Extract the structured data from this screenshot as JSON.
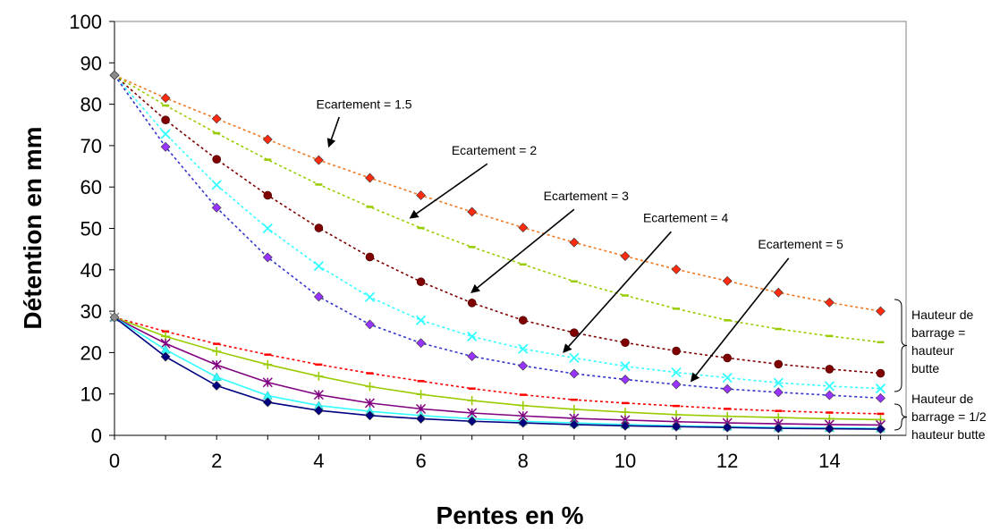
{
  "chart_data": {
    "type": "line",
    "title": "",
    "xlabel": "Pentes en %",
    "ylabel": "Détention en mm",
    "xlim": [
      0,
      15.5
    ],
    "ylim": [
      0,
      100
    ],
    "x_ticks": [
      0,
      2,
      4,
      6,
      8,
      10,
      12,
      14
    ],
    "y_ticks": [
      0,
      10,
      20,
      30,
      40,
      50,
      60,
      70,
      80,
      90,
      100
    ],
    "x_tick_labels": [
      "0",
      "2",
      "4",
      "6",
      "8",
      "10",
      "12",
      "14"
    ],
    "y_tick_labels": [
      "0",
      "10",
      "20",
      "30",
      "40",
      "50",
      "60",
      "70",
      "80",
      "90",
      "100"
    ],
    "grid": false,
    "x": [
      0,
      1,
      2,
      3,
      4,
      5,
      6,
      7,
      8,
      9,
      10,
      11,
      12,
      13,
      14,
      15
    ],
    "series": [
      {
        "group": "full",
        "color": "#FF2A10",
        "line_color": "#F07820",
        "marker": "diamond",
        "dashed": true,
        "values": [
          87,
          81.5,
          76.5,
          71.5,
          66.5,
          62.2,
          58,
          54,
          50.2,
          46.6,
          43.3,
          40.1,
          37.3,
          34.5,
          32.1,
          30
        ]
      },
      {
        "group": "full",
        "color": "#99CC00",
        "line_color": "#99CC00",
        "marker": "dash",
        "dashed": true,
        "values": [
          87,
          79.7,
          73,
          66.6,
          60.6,
          55.2,
          50.1,
          45.5,
          41.3,
          37.2,
          33.8,
          30.6,
          27.8,
          25.7,
          24,
          22.5
        ]
      },
      {
        "group": "full",
        "color": "#800000",
        "line_color": "#800000",
        "marker": "circle",
        "dashed": true,
        "values": [
          87,
          76.2,
          66.7,
          58,
          50.1,
          43.1,
          37.1,
          32,
          27.8,
          24.8,
          22.4,
          20.4,
          18.7,
          17.2,
          16,
          15
        ]
      },
      {
        "group": "full",
        "color": "#33FFFF",
        "line_color": "#33FFFF",
        "marker": "x",
        "dashed": true,
        "values": [
          87,
          72.8,
          60.5,
          50,
          40.9,
          33.4,
          27.8,
          23.9,
          20.9,
          18.7,
          16.7,
          15.2,
          13.9,
          12.7,
          11.9,
          11.3
        ]
      },
      {
        "group": "full",
        "color": "#9933FF",
        "line_color": "#3333CC",
        "marker": "diamond",
        "dashed": true,
        "values": [
          87,
          69.7,
          55,
          43,
          33.5,
          26.8,
          22.3,
          19.1,
          16.8,
          14.9,
          13.5,
          12.3,
          11.2,
          10.4,
          9.7,
          9
        ]
      },
      {
        "group": "half",
        "color": "#FF0000",
        "line_color": "#FF0000",
        "marker": "dash",
        "dashed": true,
        "values": [
          28.5,
          25.1,
          22.1,
          19.5,
          17.1,
          15,
          13.1,
          11.3,
          9.8,
          8.6,
          7.8,
          7.1,
          6.4,
          5.9,
          5.5,
          5.2
        ]
      },
      {
        "group": "half",
        "color": "#99CC00",
        "line_color": "#99CC00",
        "marker": "plus",
        "dashed": false,
        "values": [
          28.5,
          23.9,
          20.3,
          17.1,
          14.3,
          11.8,
          9.9,
          8.4,
          7.2,
          6.3,
          5.6,
          5,
          4.6,
          4.3,
          4,
          3.8
        ]
      },
      {
        "group": "half",
        "color": "#800080",
        "line_color": "#800080",
        "marker": "star",
        "dashed": false,
        "values": [
          28.5,
          22.2,
          17,
          12.8,
          9.8,
          7.8,
          6.4,
          5.4,
          4.7,
          4.1,
          3.7,
          3.3,
          3,
          2.8,
          2.6,
          2.5
        ]
      },
      {
        "group": "half",
        "color": "#33FFFF",
        "line_color": "#33FFFF",
        "marker": "triangle",
        "dashed": false,
        "values": [
          28.5,
          20.7,
          14.1,
          9.6,
          7.2,
          5.8,
          4.8,
          4,
          3.4,
          3,
          2.6,
          2.3,
          2.1,
          1.9,
          1.8,
          1.7
        ]
      },
      {
        "group": "half",
        "color": "#000080",
        "line_color": "#000080",
        "marker": "diamond",
        "dashed": false,
        "values": [
          28.5,
          19,
          12,
          8,
          6,
          4.8,
          4,
          3.4,
          3,
          2.6,
          2.3,
          2.1,
          1.9,
          1.7,
          1.6,
          1.5
        ]
      }
    ],
    "annotations": [
      {
        "text": "Ecartement = 1.5",
        "label_x": 3.95,
        "label_y": 78.9,
        "arrow_from": [
          4.4,
          76.9
        ],
        "arrow_to": [
          4.2,
          69.9
        ]
      },
      {
        "text": "Ecartement = 2",
        "label_x": 6.6,
        "label_y": 67.8,
        "arrow_from": [
          7.3,
          65.6
        ],
        "arrow_to": [
          5.8,
          52.6
        ]
      },
      {
        "text": "Ecartement = 3",
        "label_x": 8.4,
        "label_y": 56.8,
        "arrow_from": [
          9,
          54.6
        ],
        "arrow_to": [
          7.0,
          34.6
        ]
      },
      {
        "text": "Ecartement = 4",
        "label_x": 10.35,
        "label_y": 51.5,
        "arrow_from": [
          10.9,
          49.2
        ],
        "arrow_to": [
          8.8,
          20.2
        ]
      },
      {
        "text": "Ecartement = 5",
        "label_x": 12.6,
        "label_y": 45.1,
        "arrow_from": [
          13.2,
          42.8
        ],
        "arrow_to": [
          11.3,
          13.2
        ]
      }
    ],
    "group_labels": [
      {
        "lines": [
          "Hauteur de",
          "barrage =",
          "hauteur",
          "butte"
        ]
      },
      {
        "lines": [
          "Hauteur de",
          "barrage = 1/2",
          "hauteur butte"
        ]
      }
    ]
  }
}
